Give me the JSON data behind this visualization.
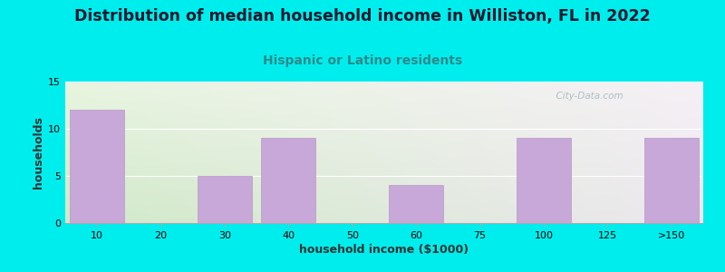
{
  "title": "Distribution of median household income in Williston, FL in 2022",
  "subtitle": "Hispanic or Latino residents",
  "xlabel": "household income ($1000)",
  "ylabel": "households",
  "categories": [
    "10",
    "20",
    "30",
    "40",
    "50",
    "60",
    "75",
    "100",
    "125",
    ">150"
  ],
  "values": [
    12,
    0,
    5,
    9,
    0,
    4,
    0,
    9,
    0,
    9
  ],
  "bar_color": "#C8A8D8",
  "bar_edge_color": "#B898C8",
  "ylim": [
    0,
    15
  ],
  "yticks": [
    0,
    5,
    10,
    15
  ],
  "bg_outer": "#00EDED",
  "bg_plot_top_left": "#E8F5E0",
  "bg_plot_top_right": "#F5F0F5",
  "bg_plot_bottom_left": "#D0EAC8",
  "bg_plot_bottom_right": "#EDE8EE",
  "title_fontsize": 12.5,
  "title_color": "#1a1a2e",
  "subtitle_color": "#2E8B8B",
  "subtitle_fontsize": 10,
  "axis_label_fontsize": 9,
  "tick_fontsize": 8,
  "watermark": "  City-Data.com",
  "watermark_color": "#A0B8B8",
  "grid_color": "#FFFFFF",
  "spine_color": "#AAAAAA"
}
